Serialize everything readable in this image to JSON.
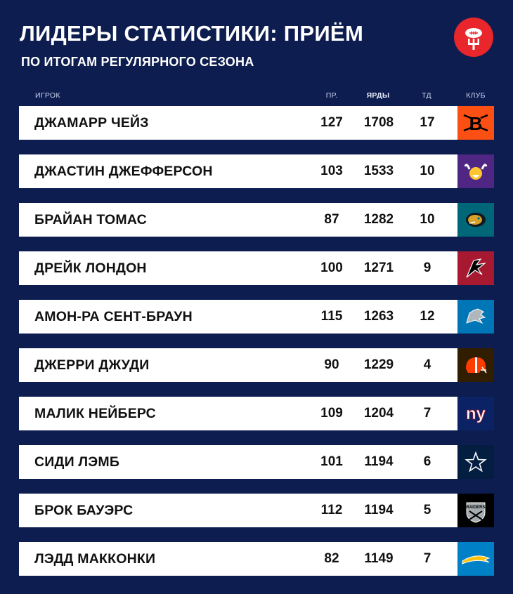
{
  "title": "ЛИДЕРЫ СТАТИСТИКИ: ПРИЁМ",
  "subtitle": "ПО ИТОГАМ РЕГУЛЯРНОГО СЕЗОНА",
  "columns": {
    "player": "ИГРОК",
    "receptions": "ПР.",
    "yards": "ЯРДЫ",
    "td": "ТД",
    "club": "КЛУБ"
  },
  "rows": [
    {
      "name": "ДЖАМАРР ЧЕЙЗ",
      "rec": "127",
      "yds": "1708",
      "td": "17",
      "team_icon": "bengals-logo-icon",
      "team_color": "#fb4f14"
    },
    {
      "name": "ДЖАСТИН ДЖЕФФЕРСОН",
      "rec": "103",
      "yds": "1533",
      "td": "10",
      "team_icon": "vikings-logo-icon",
      "team_color": "#4f2683"
    },
    {
      "name": "БРАЙАН ТОМАС",
      "rec": "87",
      "yds": "1282",
      "td": "10",
      "team_icon": "jaguars-logo-icon",
      "team_color": "#006778"
    },
    {
      "name": "ДРЕЙК ЛОНДОН",
      "rec": "100",
      "yds": "1271",
      "td": "9",
      "team_icon": "falcons-logo-icon",
      "team_color": "#a71930"
    },
    {
      "name": "АМОН-РА СЕНТ-БРАУН",
      "rec": "115",
      "yds": "1263",
      "td": "12",
      "team_icon": "lions-logo-icon",
      "team_color": "#0076b6"
    },
    {
      "name": "ДЖЕРРИ ДЖУДИ",
      "rec": "90",
      "yds": "1229",
      "td": "4",
      "team_icon": "browns-logo-icon",
      "team_color": "#311d00"
    },
    {
      "name": "МАЛИК НЕЙБЕРС",
      "rec": "109",
      "yds": "1204",
      "td": "7",
      "team_icon": "giants-logo-icon",
      "team_color": "#0b2265"
    },
    {
      "name": "СИДИ ЛЭМБ",
      "rec": "101",
      "yds": "1194",
      "td": "6",
      "team_icon": "cowboys-logo-icon",
      "team_color": "#041e42"
    },
    {
      "name": "БРОК БАУЭРС",
      "rec": "112",
      "yds": "1194",
      "td": "5",
      "team_icon": "raiders-logo-icon",
      "team_color": "#000000"
    },
    {
      "name": "ЛЭДД МАККОНКИ",
      "rec": "82",
      "yds": "1149",
      "td": "7",
      "team_icon": "chargers-logo-icon",
      "team_color": "#0080c6"
    }
  ]
}
